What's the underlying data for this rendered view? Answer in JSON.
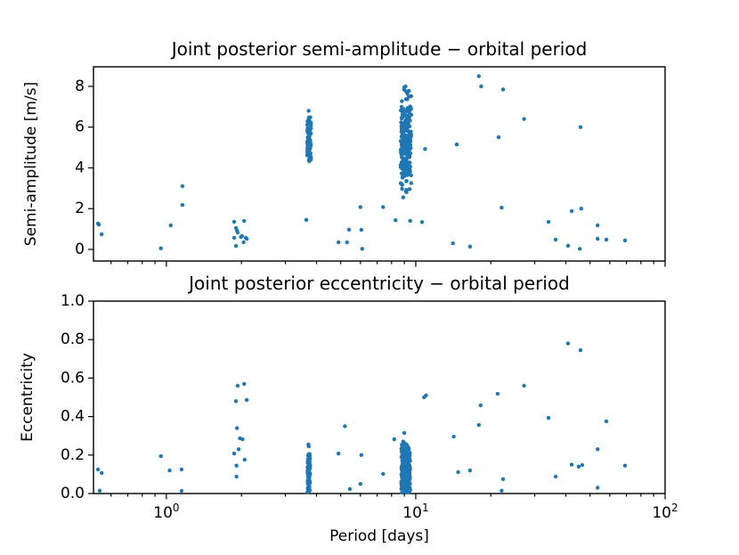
{
  "style": {
    "dot_color": "#1f77b4",
    "axis_color": "#000000",
    "bg_color": "#ffffff"
  },
  "x_axis": {
    "label": "Period [days]",
    "scale": "log",
    "major_ticks": [
      {
        "value": 1,
        "base": "10",
        "exponent": "0"
      },
      {
        "value": 10,
        "base": "10",
        "exponent": "1"
      },
      {
        "value": 100,
        "base": "10",
        "exponent": "2"
      }
    ],
    "minor_ticks": [
      0.6,
      0.7,
      0.8,
      0.9,
      2,
      3,
      4,
      5,
      6,
      7,
      8,
      9,
      20,
      30,
      40,
      50,
      60,
      70,
      80,
      90
    ]
  },
  "chart_data": [
    {
      "type": "scatter",
      "title": "Joint posterior semi-amplitude − orbital period",
      "ylabel": "Semi-amplitude [m/s]",
      "xlabel": "",
      "x_scale": "log",
      "xlim": [
        0.51,
        100
      ],
      "ylim": [
        -0.57,
        8.96
      ],
      "yticks": [
        0,
        2,
        4,
        6,
        8
      ],
      "ytick_labels": [
        "0",
        "2",
        "4",
        "6",
        "8"
      ],
      "show_xticklabels": false,
      "points": [
        [
          0.532,
          1.27
        ],
        [
          0.536,
          1.22
        ],
        [
          0.55,
          0.74
        ],
        [
          0.95,
          0.05
        ],
        [
          1.04,
          1.18
        ],
        [
          1.16,
          3.1
        ],
        [
          1.16,
          2.18
        ],
        [
          1.87,
          1.36
        ],
        [
          2.05,
          1.4
        ],
        [
          1.9,
          1.05
        ],
        [
          1.92,
          0.92
        ],
        [
          1.93,
          0.83
        ],
        [
          1.87,
          0.57
        ],
        [
          1.99,
          0.61
        ],
        [
          2.01,
          0.66
        ],
        [
          2.08,
          0.57
        ],
        [
          2.1,
          0.52
        ],
        [
          1.9,
          0.17
        ],
        [
          2.04,
          0.35
        ],
        [
          3.64,
          1.45
        ],
        [
          3.72,
          6.8
        ],
        [
          4.9,
          0.35
        ],
        [
          5.3,
          0.35
        ],
        [
          5.4,
          0.97
        ],
        [
          6.05,
          0.96
        ],
        [
          6.0,
          2.08
        ],
        [
          6.1,
          0.03
        ],
        [
          7.4,
          2.08
        ],
        [
          8.3,
          1.43
        ],
        [
          8.9,
          2.55
        ],
        [
          9.0,
          7.95
        ],
        [
          9.1,
          8.0
        ],
        [
          9.15,
          7.75
        ],
        [
          9.5,
          1.4
        ],
        [
          10.6,
          1.34
        ],
        [
          10.9,
          4.93
        ],
        [
          14.1,
          0.3
        ],
        [
          14.6,
          5.15
        ],
        [
          16.5,
          0.14
        ],
        [
          17.9,
          8.5
        ],
        [
          18.3,
          8.0
        ],
        [
          21.5,
          5.5
        ],
        [
          22.1,
          2.05
        ],
        [
          22.4,
          7.85
        ],
        [
          27.2,
          6.4
        ],
        [
          34.1,
          1.35
        ],
        [
          36.4,
          0.48
        ],
        [
          40.8,
          0.18
        ],
        [
          42.2,
          1.88
        ],
        [
          45.5,
          0.03
        ],
        [
          45.8,
          6.0
        ],
        [
          46.1,
          2.0
        ],
        [
          53.6,
          1.18
        ],
        [
          53.6,
          0.52
        ],
        [
          58.1,
          0.48
        ],
        [
          69.1,
          0.44
        ]
      ],
      "clusters": [
        {
          "name": "posterior-cloud-P3.7d",
          "p_range": [
            3.67,
            3.8
          ],
          "y_mean": 5.35,
          "y_sd": 0.62,
          "y_clip": [
            4.15,
            6.75
          ],
          "n": 85,
          "seed": 11
        },
        {
          "name": "posterior-cloud-P9d",
          "p_range": [
            8.7,
            9.6
          ],
          "y_mean": 5.2,
          "y_sd": 1.15,
          "y_clip": [
            2.6,
            7.95
          ],
          "n": 245,
          "seed": 22
        }
      ]
    },
    {
      "type": "scatter",
      "title": "Joint posterior eccentricity − orbital period",
      "ylabel": "Eccentricity",
      "xlabel": "Period [days]",
      "x_scale": "log",
      "xlim": [
        0.51,
        100
      ],
      "ylim": [
        0,
        1
      ],
      "yticks": [
        0,
        0.2,
        0.4,
        0.6,
        0.8,
        1.0
      ],
      "ytick_labels": [
        "0.0",
        "0.2",
        "0.4",
        "0.6",
        "0.8",
        "1.0"
      ],
      "show_xticklabels": true,
      "points": [
        [
          0.532,
          0.125
        ],
        [
          0.55,
          0.107
        ],
        [
          0.54,
          0.015
        ],
        [
          0.95,
          0.194
        ],
        [
          1.03,
          0.12
        ],
        [
          1.15,
          0.125
        ],
        [
          1.15,
          0.014
        ],
        [
          1.93,
          0.56
        ],
        [
          2.05,
          0.57
        ],
        [
          1.9,
          0.48
        ],
        [
          2.1,
          0.486
        ],
        [
          1.92,
          0.34
        ],
        [
          1.97,
          0.287
        ],
        [
          2.02,
          0.282
        ],
        [
          1.87,
          0.208
        ],
        [
          1.95,
          0.23
        ],
        [
          1.91,
          0.145
        ],
        [
          2.06,
          0.176
        ],
        [
          1.91,
          0.088
        ],
        [
          3.71,
          0.255
        ],
        [
          3.72,
          0.245
        ],
        [
          4.9,
          0.208
        ],
        [
          5.2,
          0.35
        ],
        [
          5.44,
          0.023
        ],
        [
          6.0,
          0.05
        ],
        [
          6.05,
          0.2
        ],
        [
          7.4,
          0.102
        ],
        [
          8.2,
          0.282
        ],
        [
          8.9,
          0.27
        ],
        [
          9.0,
          0.315
        ],
        [
          10.8,
          0.5
        ],
        [
          11.0,
          0.51
        ],
        [
          14.2,
          0.296
        ],
        [
          14.8,
          0.111
        ],
        [
          16.5,
          0.12
        ],
        [
          17.9,
          0.356
        ],
        [
          18.2,
          0.458
        ],
        [
          21.3,
          0.518
        ],
        [
          22.1,
          0.015
        ],
        [
          22.4,
          0.075
        ],
        [
          27.2,
          0.56
        ],
        [
          34.1,
          0.393
        ],
        [
          36.4,
          0.088
        ],
        [
          40.8,
          0.78
        ],
        [
          42.2,
          0.15
        ],
        [
          45.0,
          0.14
        ],
        [
          45.8,
          0.745
        ],
        [
          46.5,
          0.148
        ],
        [
          53.6,
          0.23
        ],
        [
          53.6,
          0.03
        ],
        [
          58.1,
          0.375
        ],
        [
          69.1,
          0.145
        ]
      ],
      "clusters": [
        {
          "name": "posterior-cloud-P3.7d",
          "p_range": [
            3.68,
            3.77
          ],
          "y_mean": 0.1,
          "y_sd": 0.07,
          "y_clip": [
            0.004,
            0.23
          ],
          "n": 80,
          "seed": 33
        },
        {
          "name": "posterior-cloud-P9d",
          "p_range": [
            8.75,
            9.5
          ],
          "y_mean": 0.1,
          "y_sd": 0.08,
          "y_clip": [
            0.003,
            0.26
          ],
          "n": 225,
          "seed": 44
        }
      ]
    }
  ]
}
